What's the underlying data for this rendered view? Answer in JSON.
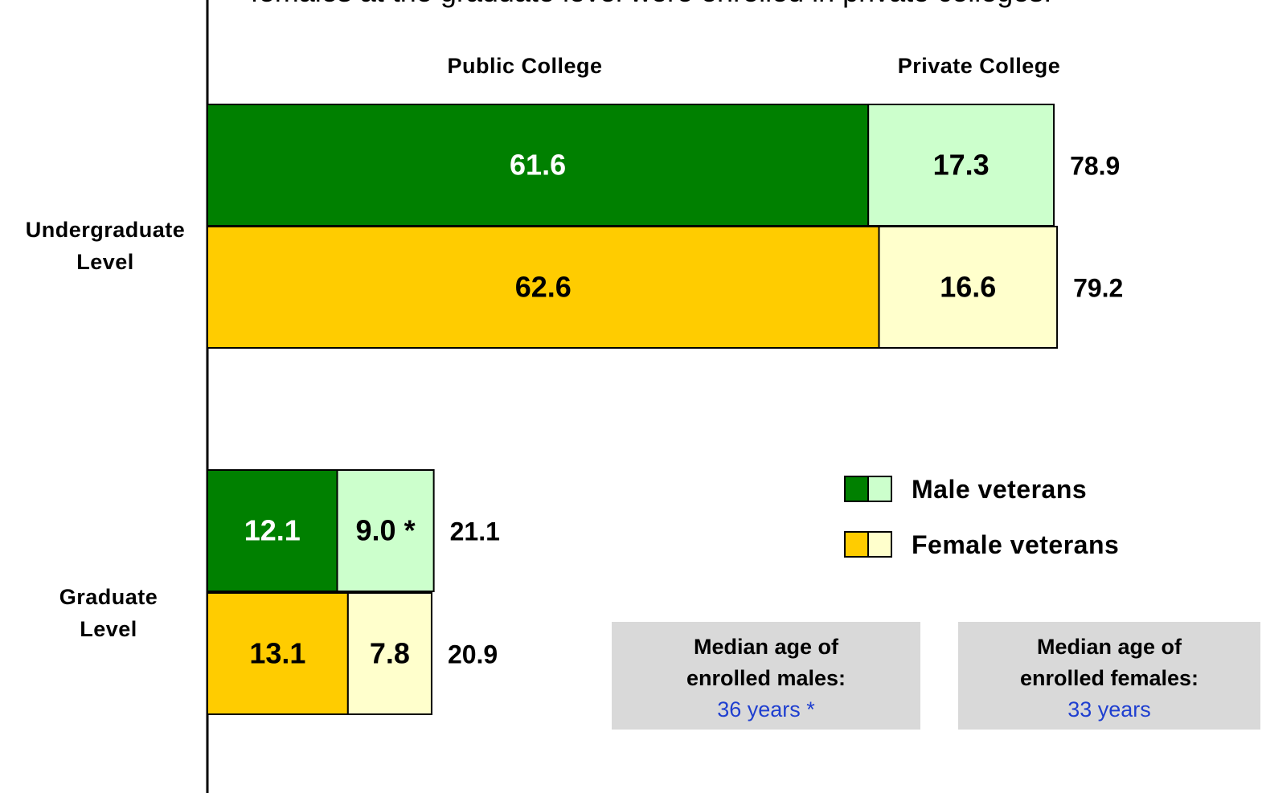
{
  "chart_data": {
    "type": "bar",
    "orientation": "horizontal",
    "stacked": true,
    "subtitle": "females at the graduate level were enrolled in private colleges.",
    "categories": [
      "Undergraduate Level",
      "Graduate Level"
    ],
    "segments": [
      "Public College",
      "Private College"
    ],
    "xlim": [
      0,
      98
    ],
    "series": [
      {
        "name": "Male veterans",
        "colors": [
          "#008000",
          "#ccffcc"
        ],
        "values": [
          [
            61.6,
            17.3
          ],
          [
            12.1,
            9.0
          ]
        ],
        "value_labels": [
          [
            "61.6",
            "17.3"
          ],
          [
            "12.1",
            "9.0 *"
          ]
        ],
        "totals": [
          78.9,
          21.1
        ]
      },
      {
        "name": "Female veterans",
        "colors": [
          "#ffcc00",
          "#ffffcc"
        ],
        "values": [
          [
            62.6,
            16.6
          ],
          [
            13.1,
            7.8
          ]
        ],
        "totals": [
          79.2,
          20.9
        ]
      }
    ],
    "annotations": [
      {
        "text": "Median age of enrolled males:",
        "value": "36 years *"
      },
      {
        "text": "Median age of enrolled females:",
        "value": "33 years"
      }
    ]
  }
}
